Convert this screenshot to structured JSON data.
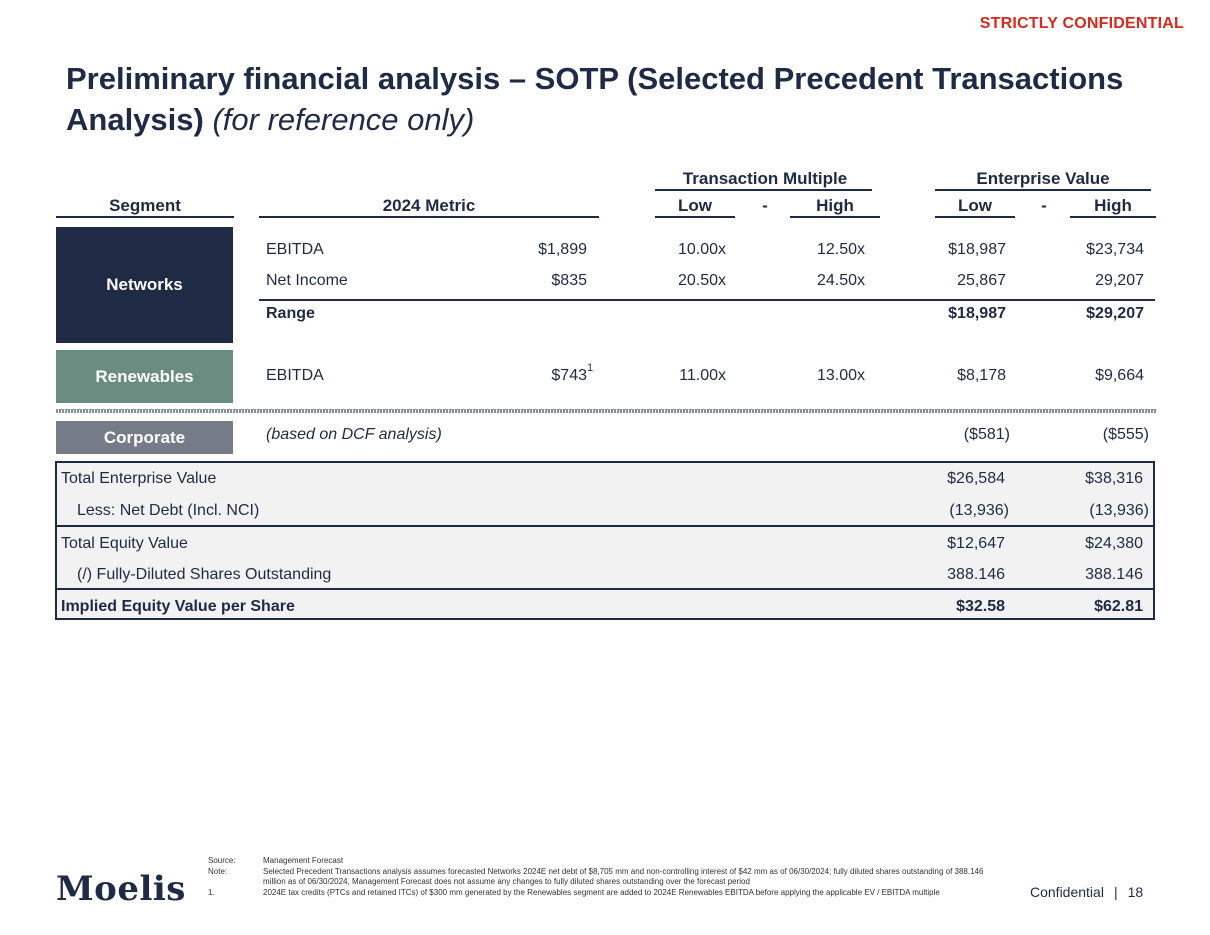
{
  "banner": "STRICTLY CONFIDENTIAL",
  "title": {
    "main": "Preliminary financial analysis – SOTP (Selected Precedent Transactions Analysis)",
    "sub": "(for reference only)"
  },
  "table": {
    "group_headers": {
      "transaction_multiple": "Transaction Multiple",
      "enterprise_value": "Enterprise Value"
    },
    "columns": {
      "segment": "Segment",
      "metric": "2024 Metric",
      "low": "Low",
      "dash": "-",
      "high": "High",
      "ev_low": "Low",
      "ev_dash": "-",
      "ev_high": "High"
    },
    "segments": {
      "networks": "Networks",
      "renewables": "Renewables",
      "corporate": "Corporate"
    },
    "networks_rows": [
      {
        "metric": "EBITDA",
        "value": "$1,899",
        "mult_low": "10.00x",
        "mult_high": "12.50x",
        "ev_low": "$18,987",
        "ev_high": "$23,734"
      },
      {
        "metric": "Net Income",
        "value": "$835",
        "mult_low": "20.50x",
        "mult_high": "24.50x",
        "ev_low": "25,867",
        "ev_high": "29,207"
      }
    ],
    "networks_range": {
      "label": "Range",
      "ev_low": "$18,987",
      "ev_high": "$29,207"
    },
    "renewables_row": {
      "metric": "EBITDA",
      "value": "$743",
      "footnote": "1",
      "mult_low": "11.00x",
      "mult_high": "13.00x",
      "ev_low": "$8,178",
      "ev_high": "$9,664"
    },
    "corporate_row": {
      "metric": "(based on DCF analysis)",
      "ev_low": "($581)",
      "ev_high": "($555)"
    }
  },
  "summary": [
    {
      "label": "Total Enterprise Value",
      "low": "$26,584",
      "high": "$38,316"
    },
    {
      "label": "Less: Net Debt (Incl. NCI)",
      "low": "(13,936)",
      "high": "(13,936)"
    },
    {
      "label": "Total Equity Value",
      "low": "$12,647",
      "high": "$24,380"
    },
    {
      "label": "(/) Fully-Diluted Shares Outstanding",
      "low": "388.146",
      "high": "388.146"
    },
    {
      "label": "Implied Equity Value per Share",
      "low": "$32.58",
      "high": "$62.81"
    }
  ],
  "footnotes": [
    {
      "key": "Source:",
      "text": "Management Forecast"
    },
    {
      "key": "Note:",
      "text": "Selected Precedent Transactions analysis assumes forecasted Networks 2024E net debt of $8,705 mm and non-controlling interest of $42 mm as of 06/30/2024; fully diluted shares outstanding of 388.146 million as of 06/30/2024, Management Forecast does not assume any changes to fully diluted shares outstanding over the forecast period"
    },
    {
      "key": "1.",
      "text": "2024E tax credits (PTCs and retained ITCs) of $300 mm generated by the Renewables segment are added to 2024E Renewables EBITDA before applying the applicable EV / EBITDA multiple"
    }
  ],
  "footer": {
    "logo": "Moelis",
    "confidential": "Confidential",
    "separator": "|",
    "page": "18"
  },
  "colors": {
    "navy": "#1f2a44",
    "renewables": "#6a8c81",
    "corporate": "#767c87",
    "red": "#d52b1e"
  }
}
